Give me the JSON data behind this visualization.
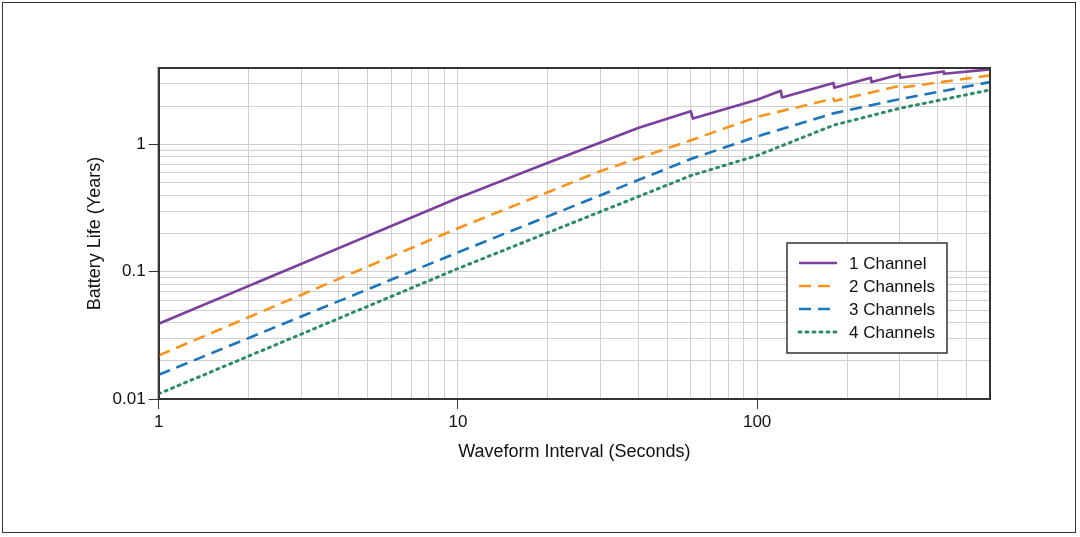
{
  "chart_data": {
    "type": "line",
    "xlabel": "Waveform Interval (Seconds)",
    "ylabel": "Battery Life (Years)",
    "log": "xy",
    "grid": true,
    "legend": "bottom right",
    "marker": "none",
    "xlim": [
      1,
      600
    ],
    "ylim": [
      0.01,
      4
    ],
    "xticks": [
      1,
      {
        "value": 2,
        "label": null
      },
      {
        "value": 3,
        "label": null
      },
      {
        "value": 4,
        "label": null
      },
      {
        "value": 5,
        "label": null
      },
      {
        "value": 6,
        "label": null
      },
      {
        "value": 7,
        "label": null
      },
      {
        "value": 8,
        "label": null
      },
      {
        "value": 9,
        "label": null
      },
      10,
      {
        "value": 20,
        "label": null
      },
      {
        "value": 30,
        "label": null
      },
      {
        "value": 40,
        "label": null
      },
      {
        "value": 50,
        "label": null
      },
      {
        "value": 60,
        "label": null
      },
      {
        "value": 70,
        "label": null
      },
      {
        "value": 80,
        "label": null
      },
      {
        "value": 90,
        "label": null
      },
      100,
      {
        "value": 200,
        "label": null
      },
      {
        "value": 300,
        "label": null
      },
      {
        "value": 400,
        "label": null
      },
      {
        "value": 500,
        "label": null
      },
      {
        "value": 600,
        "label": null
      }
    ],
    "yticks": [
      0.01,
      {
        "value": 0.02,
        "label": null
      },
      {
        "value": 0.03,
        "label": null
      },
      {
        "value": 0.04,
        "label": null
      },
      {
        "value": 0.05,
        "label": null
      },
      {
        "value": 0.06,
        "label": null
      },
      {
        "value": 0.07,
        "label": null
      },
      {
        "value": 0.08,
        "label": null
      },
      {
        "value": 0.09,
        "label": null
      },
      0.1,
      {
        "value": 0.2,
        "label": null
      },
      {
        "value": 0.3,
        "label": null
      },
      {
        "value": 0.4,
        "label": null
      },
      {
        "value": 0.5,
        "label": null
      },
      {
        "value": 0.6,
        "label": null
      },
      {
        "value": 0.7,
        "label": null
      },
      {
        "value": 0.8,
        "label": null
      },
      {
        "value": 0.9,
        "label": null
      },
      1,
      {
        "value": 2,
        "label": null
      },
      {
        "value": 3,
        "label": null
      },
      {
        "value": 4,
        "label": null
      }
    ],
    "series": [
      {
        "name": "1 Channel",
        "color": "#7b3f9e",
        "line_style": "solid",
        "x": [
          1,
          10,
          20,
          40,
          60,
          61,
          100,
          120,
          121,
          180,
          181,
          240,
          241,
          300,
          301,
          420,
          421,
          600
        ],
        "values": [
          0.039,
          0.38,
          0.72,
          1.35,
          1.83,
          1.6,
          2.25,
          2.65,
          2.35,
          3.05,
          2.8,
          3.35,
          3.1,
          3.55,
          3.35,
          3.75,
          3.6,
          3.9
        ]
      },
      {
        "name": "2 Channels",
        "color": "#f7941d",
        "line_style": "dashed",
        "x": [
          1,
          10,
          30,
          60,
          100,
          180,
          181,
          300,
          301,
          600
        ],
        "values": [
          0.022,
          0.22,
          0.62,
          1.08,
          1.65,
          2.3,
          2.2,
          2.9,
          2.8,
          3.5
        ]
      },
      {
        "name": "3 Channels",
        "color": "#1a75bc",
        "line_style": "dashed",
        "x": [
          1,
          10,
          60,
          100,
          180,
          300,
          600
        ],
        "values": [
          0.0155,
          0.142,
          0.77,
          1.16,
          1.76,
          2.28,
          3.1
        ]
      },
      {
        "name": "4 Channels",
        "color": "#2e8b6a",
        "line_style": "dotted",
        "x": [
          1,
          10,
          60,
          100,
          180,
          300,
          600
        ],
        "values": [
          0.011,
          0.106,
          0.57,
          0.82,
          1.42,
          1.93,
          2.69
        ]
      }
    ]
  }
}
